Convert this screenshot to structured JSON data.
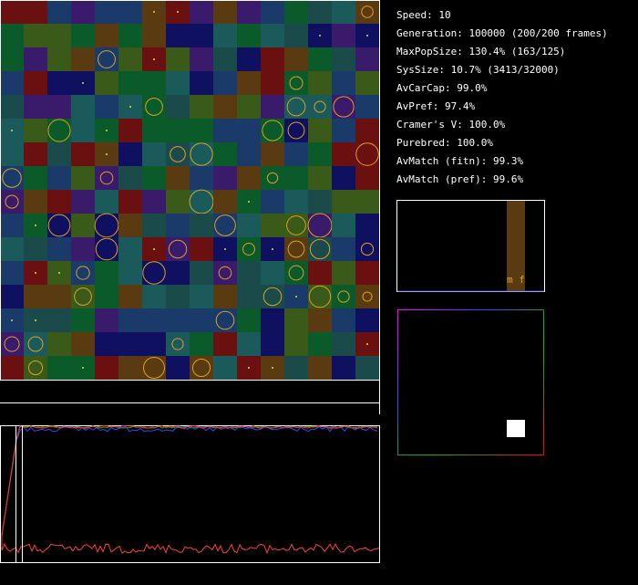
{
  "stats": [
    "Speed: 10",
    "Generation: 100000 (200/200 frames)",
    "MaxPopSize: 130.4% (163/125)",
    "SysSize: 10.7% (3413/32000)",
    "AvCarCap: 99.0%",
    "AvPref: 97.4%",
    "Cramer's V: 100.0%",
    "Purebred: 100.0%",
    "AvMatch (fitn): 99.3%",
    "AvMatch (pref): 99.6%"
  ],
  "histogram": {
    "label": "m f"
  }
}
